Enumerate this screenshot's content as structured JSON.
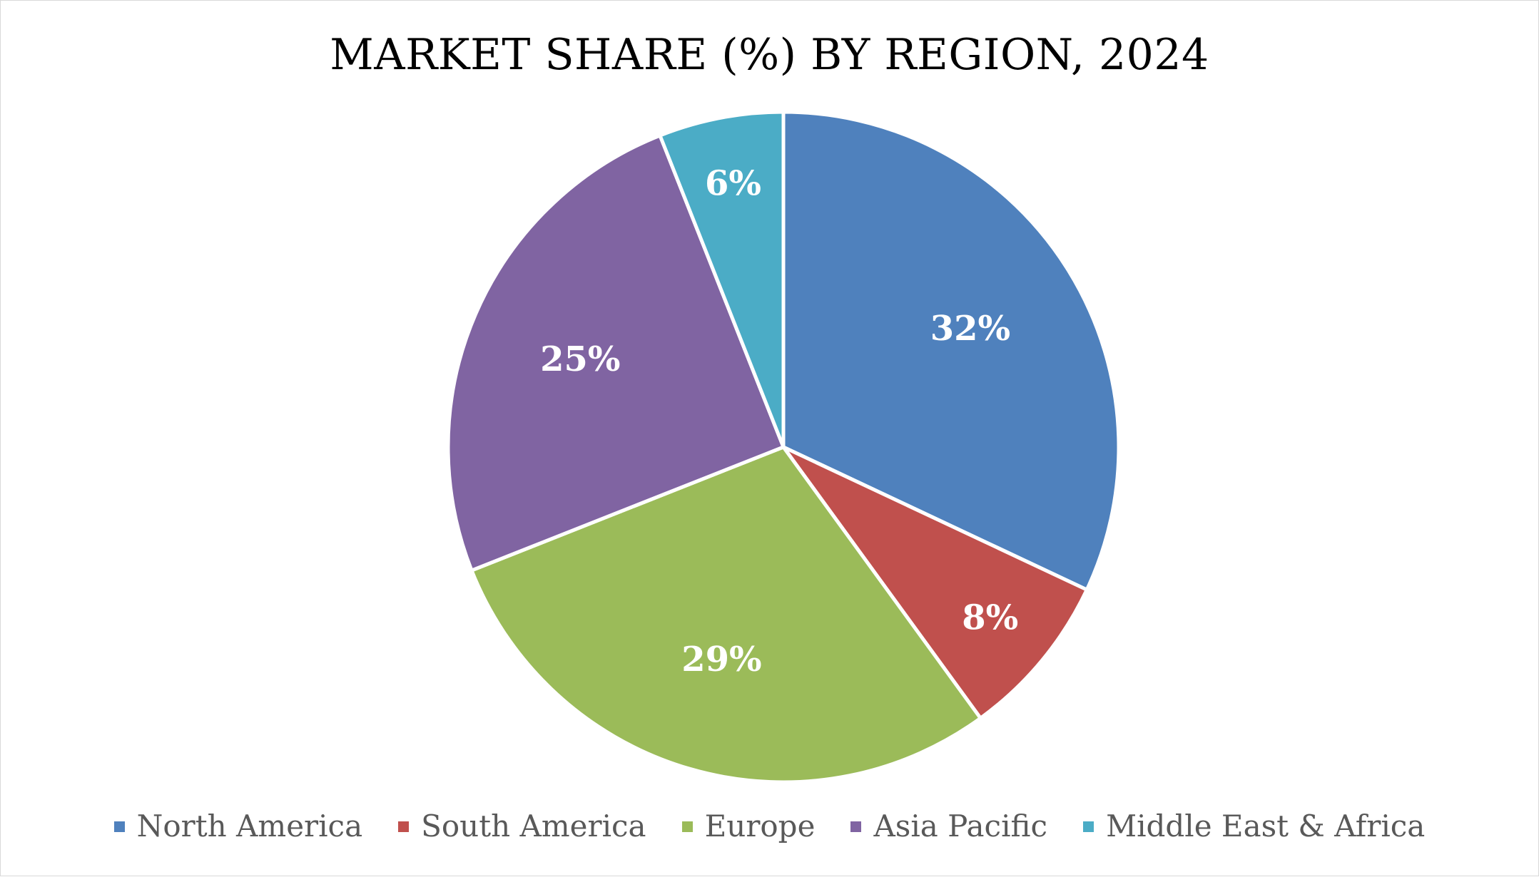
{
  "chart_data": {
    "type": "pie",
    "title": "MARKET SHARE (%) BY REGION, 2024",
    "categories": [
      "North America",
      "South America",
      "Europe",
      "Asia Pacific",
      "Middle East & Africa"
    ],
    "values": [
      32,
      8,
      29,
      25,
      6
    ],
    "data_labels": [
      "32%",
      "8%",
      "29%",
      "25%",
      "6%"
    ],
    "colors": [
      "#4f81bd",
      "#c0504d",
      "#9bbb59",
      "#8064a2",
      "#4bacc6"
    ],
    "start_angle_deg": 0,
    "direction": "clockwise",
    "legend_position": "bottom"
  }
}
